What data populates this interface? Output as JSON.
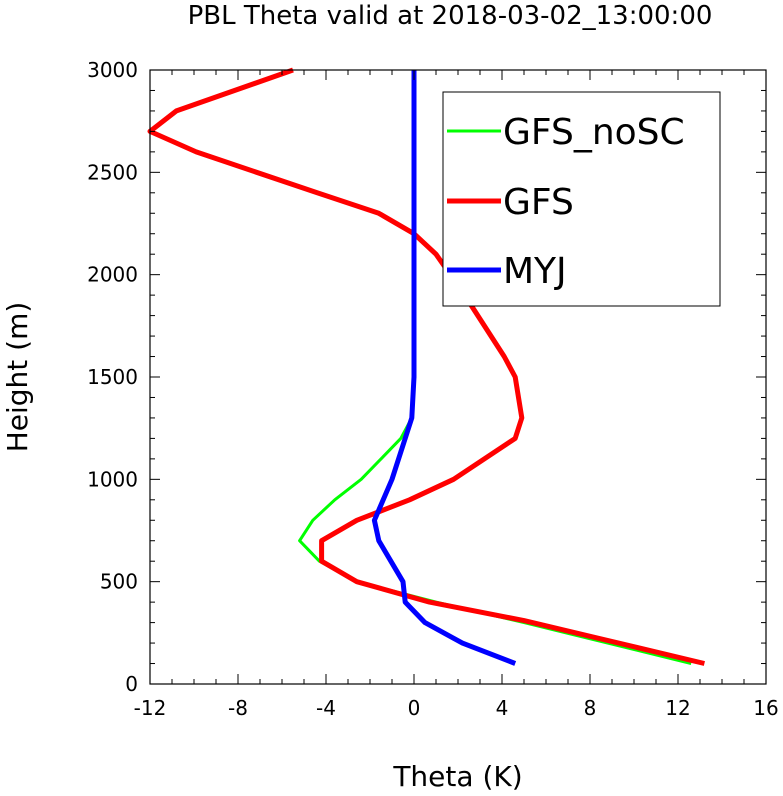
{
  "chart_data": {
    "type": "line",
    "title": "PBL Theta valid at 2018-03-02_13:00:00",
    "xlabel": "Theta (K)",
    "ylabel": "Height (m)",
    "xlim": [
      -12,
      16
    ],
    "ylim": [
      0,
      3000
    ],
    "x_ticks": [
      -12,
      -8,
      -4,
      0,
      4,
      8,
      12,
      16
    ],
    "x_tick_labels": [
      "-12",
      "-8",
      "-4",
      "0",
      "4",
      "8",
      "12",
      "16"
    ],
    "y_ticks": [
      0,
      500,
      1000,
      1500,
      2000,
      2500,
      3000
    ],
    "y_tick_labels": [
      "0",
      "500",
      "1000",
      "1500",
      "2000",
      "2500",
      "3000"
    ],
    "grid": false,
    "legend_position": "top-right",
    "series": [
      {
        "name": "GFS_noSC",
        "color": "#00ff00",
        "points": [
          [
            12.6,
            100
          ],
          [
            5.0,
            300
          ],
          [
            1.0,
            400
          ],
          [
            -2.6,
            500
          ],
          [
            -4.3,
            600
          ],
          [
            -5.2,
            700
          ],
          [
            -4.6,
            800
          ],
          [
            -3.6,
            900
          ],
          [
            -2.4,
            1000
          ],
          [
            -1.5,
            1100
          ],
          [
            -0.6,
            1200
          ],
          [
            -0.1,
            1300
          ],
          [
            0.0,
            1500
          ],
          [
            0.0,
            2000
          ],
          [
            0.0,
            3000
          ]
        ]
      },
      {
        "name": "GFS",
        "color": "#ff0000",
        "points": [
          [
            13.2,
            100
          ],
          [
            5.0,
            310
          ],
          [
            0.7,
            400
          ],
          [
            -2.6,
            500
          ],
          [
            -4.2,
            600
          ],
          [
            -4.2,
            700
          ],
          [
            -2.6,
            800
          ],
          [
            -0.2,
            900
          ],
          [
            1.8,
            1000
          ],
          [
            4.6,
            1200
          ],
          [
            4.9,
            1300
          ],
          [
            4.6,
            1500
          ],
          [
            4.1,
            1600
          ],
          [
            2.3,
            1900
          ],
          [
            1.0,
            2100
          ],
          [
            0.0,
            2200
          ],
          [
            -1.6,
            2300
          ],
          [
            -4.4,
            2400
          ],
          [
            -9.9,
            2600
          ],
          [
            -12.0,
            2700
          ],
          [
            -10.8,
            2800
          ],
          [
            -5.5,
            3000
          ]
        ]
      },
      {
        "name": "MYJ",
        "color": "#0000ff",
        "points": [
          [
            4.6,
            100
          ],
          [
            2.2,
            200
          ],
          [
            0.5,
            300
          ],
          [
            -0.4,
            400
          ],
          [
            -0.5,
            500
          ],
          [
            -1.6,
            700
          ],
          [
            -1.8,
            800
          ],
          [
            -1.0,
            1000
          ],
          [
            -0.4,
            1200
          ],
          [
            -0.1,
            1300
          ],
          [
            0.0,
            1500
          ],
          [
            0.0,
            2000
          ],
          [
            0.0,
            3000
          ]
        ]
      }
    ]
  }
}
